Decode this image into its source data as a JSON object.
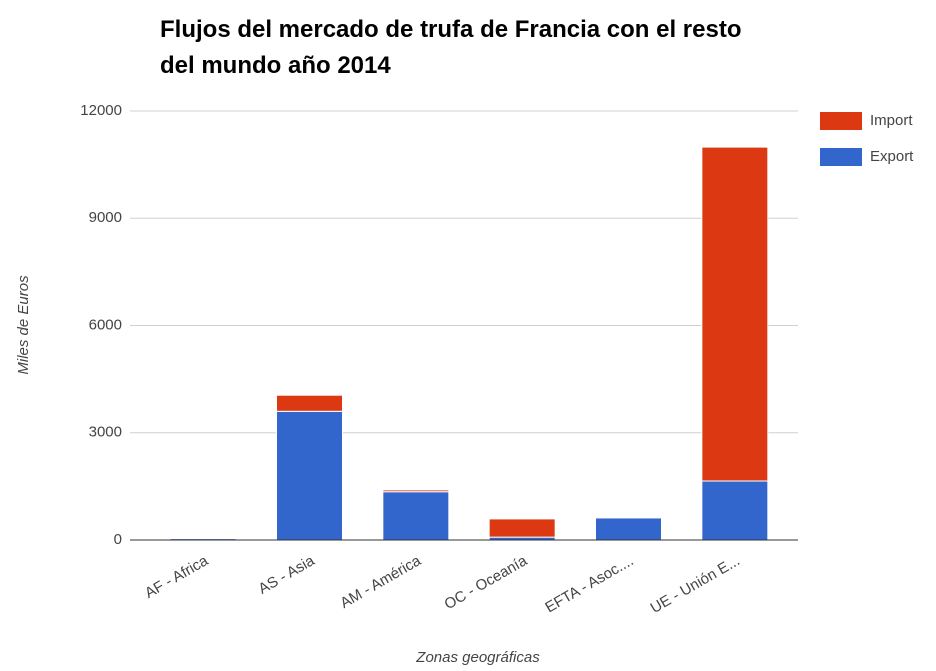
{
  "chart_data": {
    "type": "stacked_bar",
    "title": "Flujos del mercado de trufa de Francia con el resto del mundo año 2014",
    "x_label": "Zonas geográficas",
    "y_label": "Miles de Euros",
    "categories": [
      "AF - Africa",
      "AS - Asia",
      "AM - América",
      "OC - Oceanía",
      "EFTA - Asoc....",
      "UE - Unión E..."
    ],
    "series": [
      {
        "name": "Export",
        "color": "#3366cc",
        "values": [
          40,
          3600,
          1350,
          80,
          620,
          1650
        ]
      },
      {
        "name": "Import",
        "color": "#dc3912",
        "values": [
          20,
          450,
          50,
          510,
          10,
          9340
        ]
      }
    ],
    "ylim": [
      0,
      12000
    ],
    "yticks": [
      0,
      3000,
      6000,
      9000,
      12000
    ],
    "grid": true,
    "legend": "right"
  }
}
